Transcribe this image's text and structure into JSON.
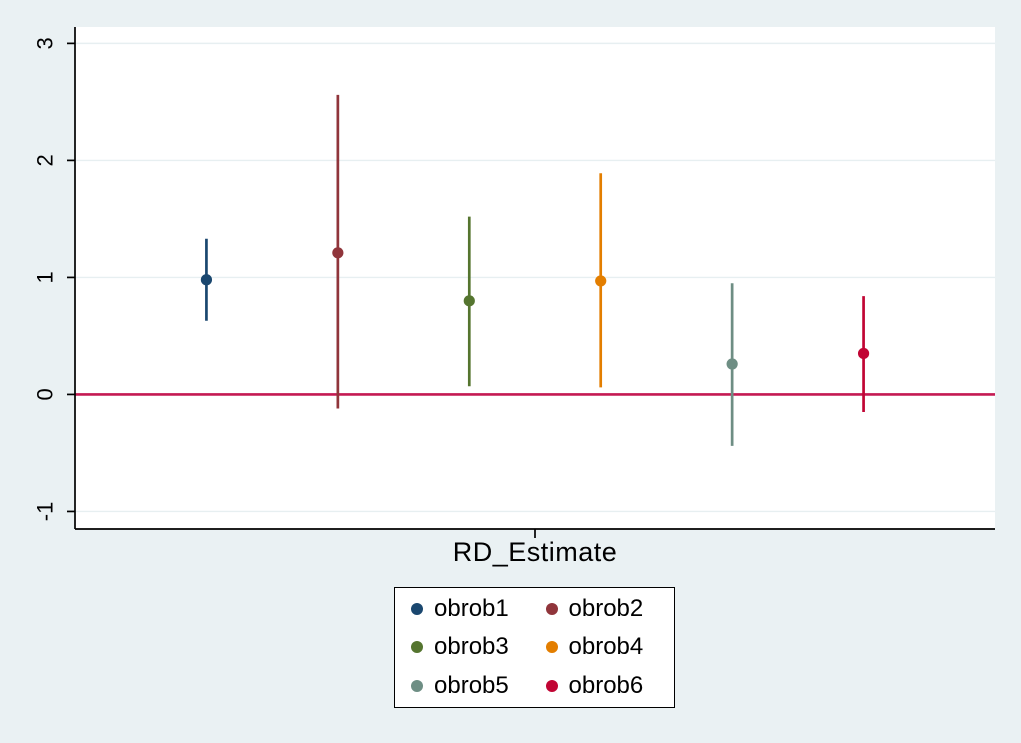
{
  "chart_data": {
    "type": "scatter",
    "subtype": "coefficient-plot-with-ci",
    "title": "",
    "xlabel": "RD_Estimate",
    "ylabel": "",
    "ylim": [
      -1.15,
      3.14
    ],
    "yticks": [
      -1,
      0,
      1,
      2,
      3
    ],
    "grid": true,
    "legend_position": "bottom",
    "zero_line": {
      "y": 0,
      "color": "#c41a52"
    },
    "series": [
      {
        "name": "obrob1",
        "estimate": 0.98,
        "ci_low": 0.63,
        "ci_high": 1.33,
        "color": "#1a476f"
      },
      {
        "name": "obrob2",
        "estimate": 1.21,
        "ci_low": -0.12,
        "ci_high": 2.56,
        "color": "#90353b"
      },
      {
        "name": "obrob3",
        "estimate": 0.8,
        "ci_low": 0.07,
        "ci_high": 1.52,
        "color": "#55752f"
      },
      {
        "name": "obrob4",
        "estimate": 0.97,
        "ci_low": 0.06,
        "ci_high": 1.89,
        "color": "#e37e00"
      },
      {
        "name": "obrob5",
        "estimate": 0.26,
        "ci_low": -0.44,
        "ci_high": 0.95,
        "color": "#6e8e84"
      },
      {
        "name": "obrob6",
        "estimate": 0.35,
        "ci_low": -0.15,
        "ci_high": 0.84,
        "color": "#c10534"
      }
    ]
  },
  "colors": {
    "background": "#eaf1f3",
    "plot_background": "#ffffff",
    "grid": "#e7eff1",
    "axis": "#000000"
  }
}
